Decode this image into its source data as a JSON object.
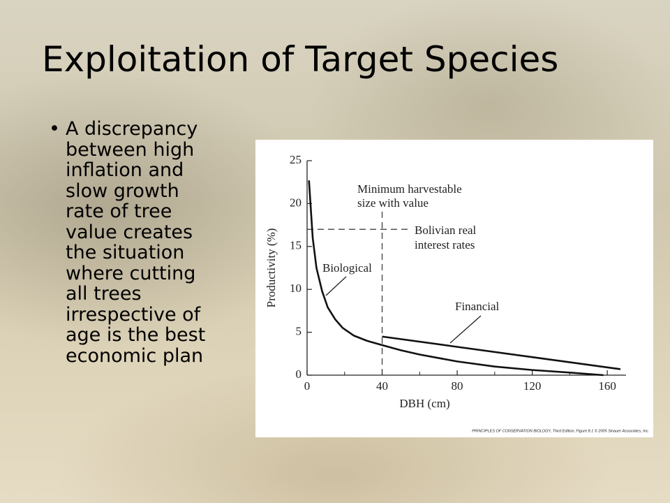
{
  "slide": {
    "title": "Exploitation of Target Species",
    "bullet_lines": [
      "A discrepancy",
      "between high",
      "inflation and",
      "slow growth",
      "rate of tree",
      "value creates",
      "the situation",
      "where cutting",
      "all trees",
      "irrespective of",
      "age is the best",
      "economic plan"
    ]
  },
  "chart_data": {
    "type": "line",
    "x_label": "DBH (cm)",
    "y_label": "Productivity (%)",
    "series": [
      {
        "name": "Biological",
        "color": "#111111",
        "x": [
          1,
          3,
          5,
          8,
          11,
          15,
          19,
          25,
          32,
          40,
          50,
          60,
          80,
          100,
          120,
          140,
          158
        ],
        "values": [
          22.7,
          16,
          12.5,
          9.8,
          7.9,
          6.5,
          5.5,
          4.6,
          4.0,
          3.5,
          2.9,
          2.4,
          1.6,
          1.0,
          0.6,
          0.3,
          0
        ]
      },
      {
        "name": "Financial",
        "color": "#111111",
        "x": [
          40,
          80,
          120,
          167
        ],
        "values": [
          4.5,
          3.3,
          2.1,
          0.7
        ]
      }
    ],
    "annotations": {
      "min_size": [
        "Minimum harvestable",
        "size with value"
      ],
      "interest": [
        "Bolivian real",
        "interest rates"
      ]
    },
    "interest_rate": 17,
    "min_harvest_size": 40,
    "min_harvest_top": 19.5,
    "xlim": [
      0,
      170
    ],
    "ylim": [
      0,
      25
    ],
    "xticks": [
      0,
      40,
      80,
      120,
      160
    ],
    "xminor": [
      20,
      60,
      100,
      140
    ],
    "yticks": [
      0,
      5,
      10,
      15,
      20,
      25
    ],
    "credit": "PRINCIPLES OF CONSERVATION BIOLOGY, Third Edition, Figure 8.1 © 2005 Sinauer Associates, Inc."
  }
}
